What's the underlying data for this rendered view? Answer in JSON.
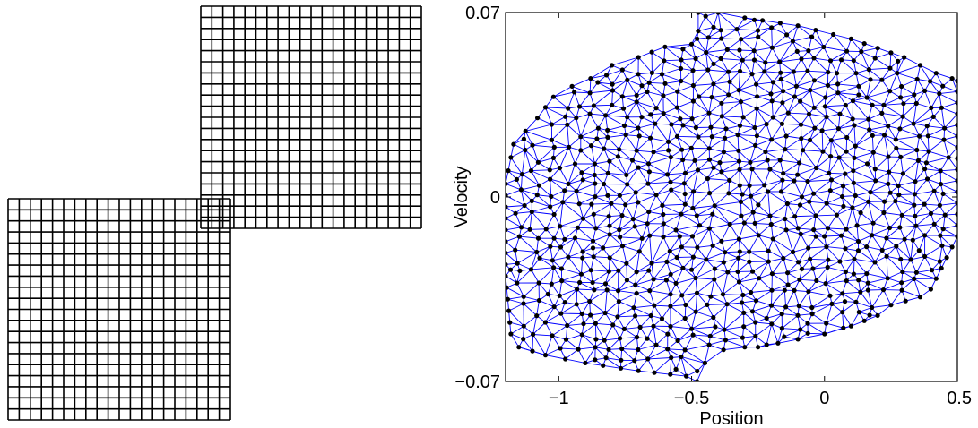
{
  "chart_data": [
    {
      "type": "grid",
      "panel": "left",
      "blocks": [
        {
          "name": "upper-right-grid",
          "rows": 20,
          "cols": 20
        },
        {
          "name": "lower-left-grid",
          "rows": 20,
          "cols": 20
        }
      ],
      "line_color": "#000000"
    },
    {
      "type": "scatter",
      "panel": "right",
      "style": "triangulated point mesh",
      "xlabel": "Position",
      "ylabel": "Velocity",
      "xlim": [
        -1.2,
        0.5
      ],
      "ylim": [
        -0.07,
        0.07
      ],
      "xticks": [
        -1,
        -0.5,
        0,
        0.5
      ],
      "xtick_labels": [
        "−1",
        "−0.5",
        "0",
        "0.5"
      ],
      "yticks": [
        -0.07,
        0,
        0.07
      ],
      "ytick_labels": [
        "−0.07",
        "0",
        "0.07"
      ],
      "grid": false,
      "point_color": "#000000",
      "edge_color": "#0000ff",
      "x_step": 0.055,
      "y_step": 0.0042,
      "point_jitter": 0.35,
      "boundary": [
        [
          -0.475,
          0.07
        ],
        [
          -0.4,
          0.07
        ],
        [
          -0.3,
          0.068
        ],
        [
          -0.1,
          0.065
        ],
        [
          0.1,
          0.06
        ],
        [
          0.3,
          0.053
        ],
        [
          0.42,
          0.047
        ],
        [
          0.48,
          0.045
        ],
        [
          0.5,
          0.044
        ],
        [
          0.5,
          0.04
        ],
        [
          0.5,
          -0.015
        ],
        [
          0.4,
          -0.035
        ],
        [
          0.36,
          -0.038
        ],
        [
          0.25,
          -0.041
        ],
        [
          0.2,
          -0.045
        ],
        [
          0.1,
          -0.049
        ],
        [
          0.0,
          -0.052
        ],
        [
          -0.1,
          -0.054
        ],
        [
          -0.25,
          -0.057
        ],
        [
          -0.3,
          -0.057
        ],
        [
          -0.38,
          -0.058
        ],
        [
          -0.45,
          -0.063
        ],
        [
          -0.48,
          -0.07
        ],
        [
          -0.52,
          -0.068
        ],
        [
          -0.7,
          -0.066
        ],
        [
          -0.9,
          -0.063
        ],
        [
          -1.05,
          -0.06
        ],
        [
          -1.15,
          -0.057
        ],
        [
          -1.18,
          -0.052
        ],
        [
          -1.2,
          -0.03
        ],
        [
          -1.2,
          0.005
        ],
        [
          -1.17,
          0.02
        ],
        [
          -1.08,
          0.03
        ],
        [
          -1.02,
          0.038
        ],
        [
          -0.95,
          0.042
        ],
        [
          -0.88,
          0.045
        ],
        [
          -0.8,
          0.05
        ],
        [
          -0.7,
          0.053
        ],
        [
          -0.6,
          0.057
        ],
        [
          -0.5,
          0.058
        ],
        [
          -0.475,
          0.063
        ]
      ]
    }
  ]
}
